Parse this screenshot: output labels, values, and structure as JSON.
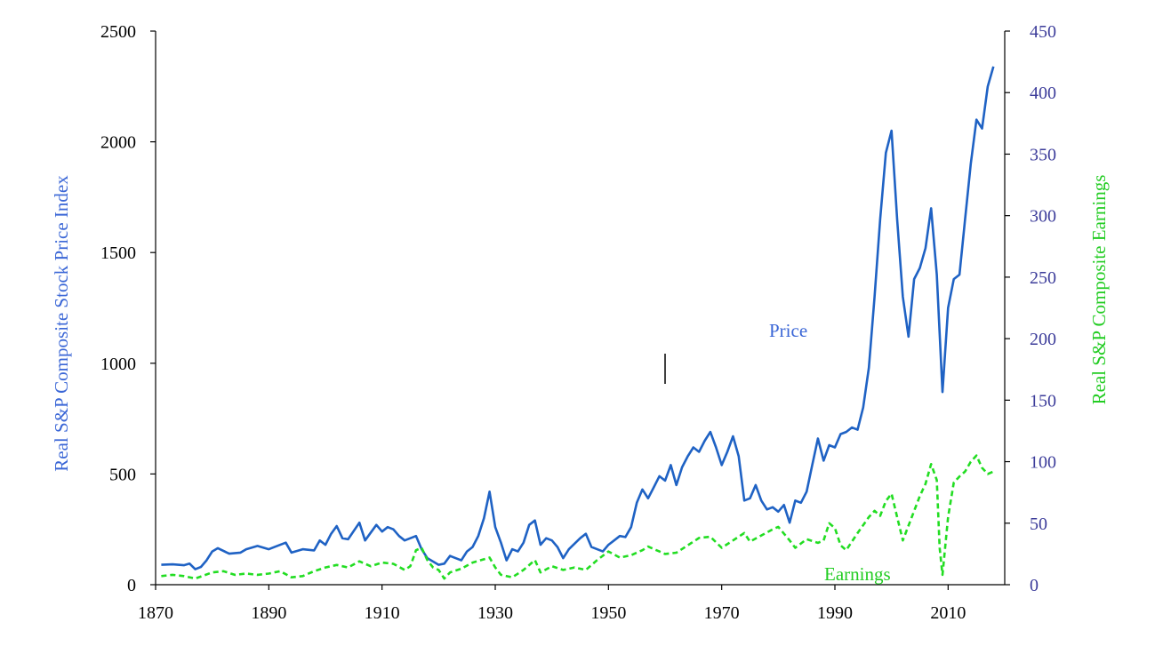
{
  "chart_data": {
    "type": "line",
    "title": "",
    "xlabel": "",
    "ylabel_left": "Real S&P Composite Stock Price Index",
    "ylabel_right": "Real S&P Composite Earnings",
    "xlim": [
      1870,
      2020
    ],
    "ylim_left": [
      0,
      2500
    ],
    "ylim_right": [
      0,
      450
    ],
    "x_ticks": [
      "1870",
      "1890",
      "1910",
      "1930",
      "1950",
      "1970",
      "1990",
      "2010"
    ],
    "y_left_ticks": [
      "0",
      "500",
      "1000",
      "1500",
      "2000",
      "2500"
    ],
    "y_right_ticks": [
      "0",
      "50",
      "100",
      "150",
      "200",
      "250",
      "300",
      "350",
      "400",
      "450"
    ],
    "grid": false,
    "colors": {
      "price": "#1f62c4",
      "earnings": "#22dd22",
      "left_axis_label": "#3a66d6",
      "right_axis_label": "#22cc22",
      "right_ticks": "#3c3c9a",
      "axes": "#000000"
    },
    "annotations": {
      "price_label": "Price",
      "earnings_label": "Earnings"
    },
    "series": [
      {
        "name": "Price",
        "axis": "left",
        "style": "solid",
        "points": [
          [
            1871,
            90
          ],
          [
            1873,
            92
          ],
          [
            1875,
            88
          ],
          [
            1876,
            95
          ],
          [
            1877,
            70
          ],
          [
            1878,
            80
          ],
          [
            1879,
            110
          ],
          [
            1880,
            150
          ],
          [
            1881,
            165
          ],
          [
            1883,
            140
          ],
          [
            1885,
            145
          ],
          [
            1886,
            160
          ],
          [
            1888,
            175
          ],
          [
            1890,
            160
          ],
          [
            1891,
            170
          ],
          [
            1893,
            190
          ],
          [
            1894,
            145
          ],
          [
            1896,
            160
          ],
          [
            1898,
            155
          ],
          [
            1899,
            200
          ],
          [
            1900,
            180
          ],
          [
            1901,
            230
          ],
          [
            1902,
            265
          ],
          [
            1903,
            210
          ],
          [
            1904,
            205
          ],
          [
            1906,
            280
          ],
          [
            1907,
            200
          ],
          [
            1909,
            270
          ],
          [
            1910,
            240
          ],
          [
            1911,
            260
          ],
          [
            1912,
            250
          ],
          [
            1913,
            220
          ],
          [
            1914,
            200
          ],
          [
            1915,
            210
          ],
          [
            1916,
            220
          ],
          [
            1917,
            160
          ],
          [
            1918,
            120
          ],
          [
            1920,
            90
          ],
          [
            1921,
            95
          ],
          [
            1922,
            130
          ],
          [
            1924,
            110
          ],
          [
            1925,
            150
          ],
          [
            1926,
            170
          ],
          [
            1927,
            220
          ],
          [
            1928,
            300
          ],
          [
            1929,
            420
          ],
          [
            1930,
            260
          ],
          [
            1931,
            190
          ],
          [
            1932,
            110
          ],
          [
            1933,
            160
          ],
          [
            1934,
            150
          ],
          [
            1935,
            190
          ],
          [
            1936,
            270
          ],
          [
            1937,
            290
          ],
          [
            1938,
            180
          ],
          [
            1939,
            210
          ],
          [
            1940,
            200
          ],
          [
            1941,
            170
          ],
          [
            1942,
            120
          ],
          [
            1943,
            160
          ],
          [
            1945,
            210
          ],
          [
            1946,
            230
          ],
          [
            1947,
            170
          ],
          [
            1948,
            160
          ],
          [
            1949,
            150
          ],
          [
            1950,
            180
          ],
          [
            1951,
            200
          ],
          [
            1952,
            220
          ],
          [
            1953,
            215
          ],
          [
            1954,
            260
          ],
          [
            1955,
            370
          ],
          [
            1956,
            430
          ],
          [
            1957,
            390
          ],
          [
            1958,
            440
          ],
          [
            1959,
            490
          ],
          [
            1960,
            470
          ],
          [
            1961,
            540
          ],
          [
            1962,
            450
          ],
          [
            1963,
            530
          ],
          [
            1964,
            580
          ],
          [
            1965,
            620
          ],
          [
            1966,
            600
          ],
          [
            1967,
            650
          ],
          [
            1968,
            690
          ],
          [
            1969,
            620
          ],
          [
            1970,
            540
          ],
          [
            1971,
            600
          ],
          [
            1972,
            670
          ],
          [
            1973,
            580
          ],
          [
            1974,
            380
          ],
          [
            1975,
            390
          ],
          [
            1976,
            450
          ],
          [
            1977,
            380
          ],
          [
            1978,
            340
          ],
          [
            1979,
            350
          ],
          [
            1980,
            330
          ],
          [
            1981,
            360
          ],
          [
            1982,
            280
          ],
          [
            1983,
            380
          ],
          [
            1984,
            370
          ],
          [
            1985,
            420
          ],
          [
            1986,
            540
          ],
          [
            1987,
            660
          ],
          [
            1988,
            560
          ],
          [
            1989,
            630
          ],
          [
            1990,
            620
          ],
          [
            1991,
            680
          ],
          [
            1992,
            690
          ],
          [
            1993,
            710
          ],
          [
            1994,
            700
          ],
          [
            1995,
            800
          ],
          [
            1996,
            980
          ],
          [
            1997,
            1300
          ],
          [
            1998,
            1650
          ],
          [
            1999,
            1950
          ],
          [
            2000,
            2050
          ],
          [
            2001,
            1650
          ],
          [
            2002,
            1300
          ],
          [
            2003,
            1120
          ],
          [
            2004,
            1380
          ],
          [
            2005,
            1430
          ],
          [
            2006,
            1520
          ],
          [
            2007,
            1700
          ],
          [
            2008,
            1400
          ],
          [
            2009,
            870
          ],
          [
            2010,
            1250
          ],
          [
            2011,
            1380
          ],
          [
            2012,
            1400
          ],
          [
            2013,
            1650
          ],
          [
            2014,
            1900
          ],
          [
            2015,
            2100
          ],
          [
            2016,
            2060
          ],
          [
            2017,
            2250
          ],
          [
            2018,
            2340
          ]
        ]
      },
      {
        "name": "Earnings",
        "axis": "right",
        "style": "dashed",
        "points": [
          [
            1871,
            7
          ],
          [
            1873,
            8
          ],
          [
            1875,
            7
          ],
          [
            1877,
            5
          ],
          [
            1880,
            10
          ],
          [
            1882,
            11
          ],
          [
            1884,
            8
          ],
          [
            1886,
            9
          ],
          [
            1888,
            8
          ],
          [
            1890,
            9
          ],
          [
            1892,
            11
          ],
          [
            1894,
            6
          ],
          [
            1896,
            7
          ],
          [
            1898,
            11
          ],
          [
            1900,
            14
          ],
          [
            1902,
            16
          ],
          [
            1904,
            14
          ],
          [
            1906,
            19
          ],
          [
            1908,
            15
          ],
          [
            1910,
            18
          ],
          [
            1912,
            17
          ],
          [
            1914,
            12
          ],
          [
            1915,
            15
          ],
          [
            1916,
            28
          ],
          [
            1917,
            30
          ],
          [
            1918,
            20
          ],
          [
            1919,
            14
          ],
          [
            1920,
            12
          ],
          [
            1921,
            5
          ],
          [
            1922,
            10
          ],
          [
            1924,
            13
          ],
          [
            1926,
            18
          ],
          [
            1929,
            22
          ],
          [
            1930,
            14
          ],
          [
            1931,
            8
          ],
          [
            1933,
            6
          ],
          [
            1935,
            12
          ],
          [
            1937,
            20
          ],
          [
            1938,
            10
          ],
          [
            1940,
            15
          ],
          [
            1942,
            12
          ],
          [
            1944,
            14
          ],
          [
            1946,
            12
          ],
          [
            1948,
            20
          ],
          [
            1950,
            27
          ],
          [
            1952,
            22
          ],
          [
            1954,
            24
          ],
          [
            1956,
            28
          ],
          [
            1957,
            31
          ],
          [
            1959,
            27
          ],
          [
            1960,
            25
          ],
          [
            1962,
            26
          ],
          [
            1964,
            32
          ],
          [
            1966,
            38
          ],
          [
            1968,
            39
          ],
          [
            1970,
            30
          ],
          [
            1972,
            36
          ],
          [
            1974,
            42
          ],
          [
            1975,
            35
          ],
          [
            1977,
            40
          ],
          [
            1979,
            45
          ],
          [
            1980,
            47
          ],
          [
            1982,
            36
          ],
          [
            1983,
            30
          ],
          [
            1985,
            37
          ],
          [
            1987,
            34
          ],
          [
            1988,
            36
          ],
          [
            1989,
            50
          ],
          [
            1990,
            46
          ],
          [
            1991,
            32
          ],
          [
            1992,
            28
          ],
          [
            1994,
            42
          ],
          [
            1996,
            55
          ],
          [
            1997,
            60
          ],
          [
            1998,
            56
          ],
          [
            1999,
            68
          ],
          [
            2000,
            74
          ],
          [
            2001,
            55
          ],
          [
            2002,
            36
          ],
          [
            2003,
            48
          ],
          [
            2005,
            72
          ],
          [
            2006,
            82
          ],
          [
            2007,
            98
          ],
          [
            2008,
            85
          ],
          [
            2008.5,
            30
          ],
          [
            2009,
            8
          ],
          [
            2010,
            55
          ],
          [
            2011,
            83
          ],
          [
            2012,
            88
          ],
          [
            2013,
            92
          ],
          [
            2014,
            100
          ],
          [
            2015,
            105
          ],
          [
            2016,
            95
          ],
          [
            2017,
            90
          ],
          [
            2018,
            92
          ]
        ]
      }
    ]
  }
}
